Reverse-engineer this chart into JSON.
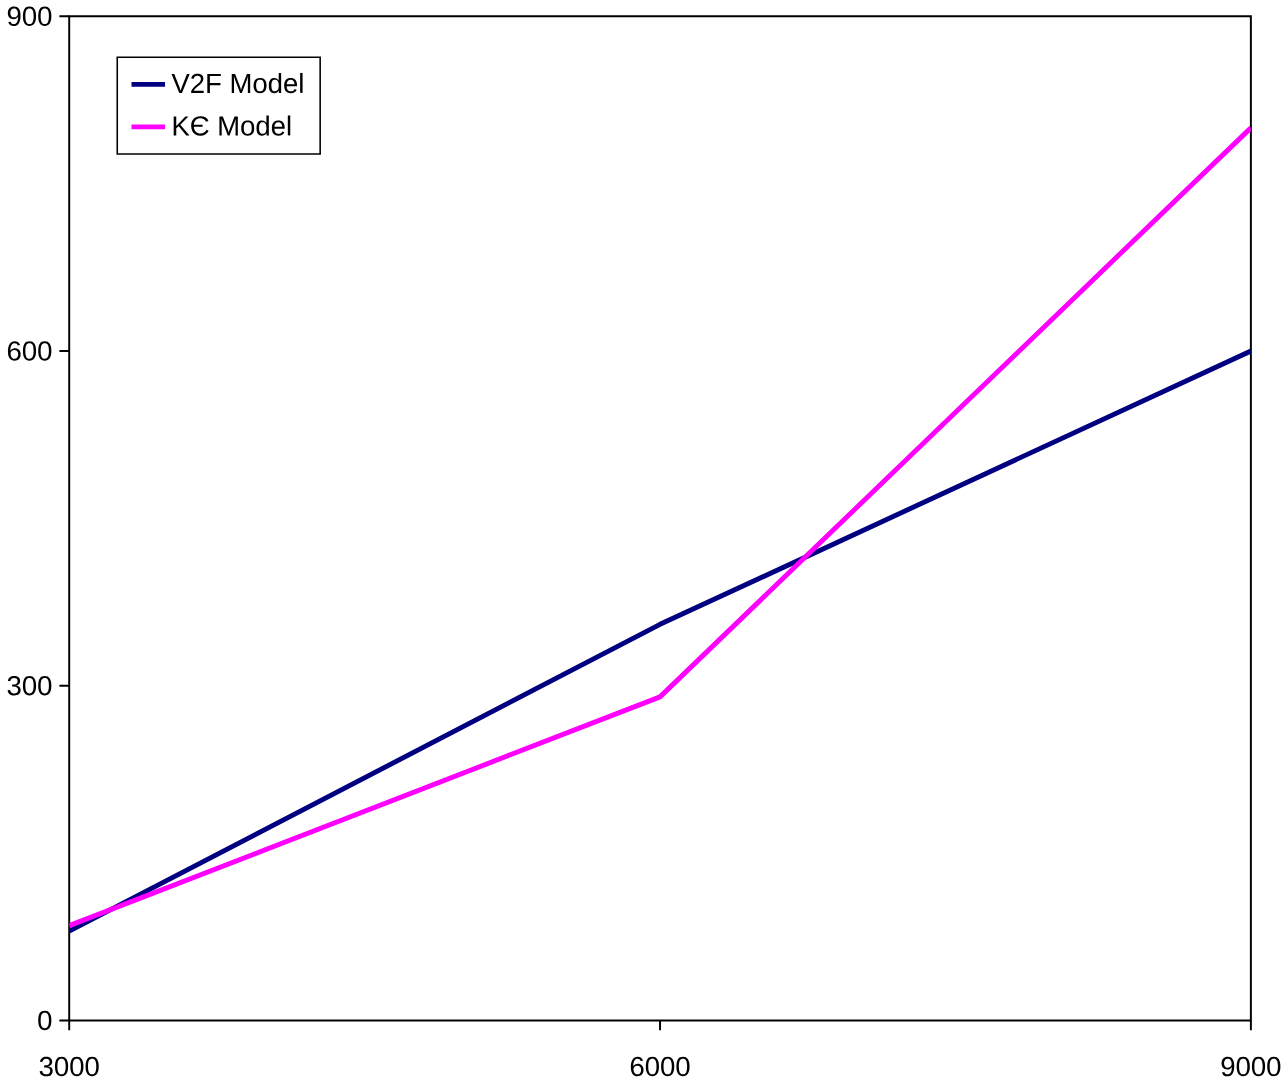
{
  "chart_data": {
    "type": "line",
    "x": [
      3000,
      6000,
      9000
    ],
    "series": [
      {
        "name": "V2F Model",
        "color": "#000080",
        "values": [
          80,
          355,
          600
        ]
      },
      {
        "name": "KЄ Model",
        "color": "#ff00ff",
        "values": [
          85,
          290,
          800
        ]
      }
    ],
    "xlim": [
      3000,
      9000
    ],
    "xticks": [
      3000,
      6000,
      9000
    ],
    "ylim": [
      0,
      900
    ],
    "yticks": [
      0,
      300,
      600,
      900
    ],
    "legend": "top left",
    "grid": false,
    "marker": "none",
    "line_style": "solid"
  }
}
